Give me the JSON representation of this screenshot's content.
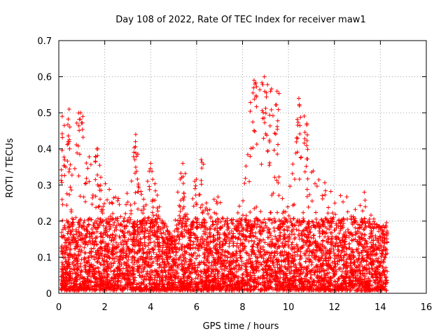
{
  "chart_data": {
    "type": "scatter",
    "title": "Day 108 of 2022, Rate Of TEC Index for receiver maw1",
    "xlabel": "GPS time / hours",
    "ylabel": "ROTI / TECUs",
    "xlim": [
      0,
      16
    ],
    "ylim": [
      0,
      0.7
    ],
    "grid": true,
    "x_ticks": [
      0,
      2,
      4,
      6,
      8,
      10,
      12,
      14,
      16
    ],
    "y_ticks": [
      0,
      0.1,
      0.2,
      0.3,
      0.4,
      0.5,
      0.6,
      0.7
    ],
    "x_tick_labels": [
      "0",
      "2",
      "4",
      "6",
      "8",
      "10",
      "12",
      "14",
      "16"
    ],
    "y_tick_labels": [
      "0",
      "0.1",
      "0.2",
      "0.3",
      "0.4",
      "0.5",
      "0.6",
      "0.7"
    ],
    "marker": "+",
    "color": "#ff0000",
    "data_x_range": [
      0.1,
      14.3
    ],
    "series": [
      {
        "name": "maw1",
        "envelope_x": [
          0.1,
          0.3,
          0.5,
          0.9,
          1.2,
          1.7,
          2.0,
          2.5,
          3.0,
          3.3,
          3.7,
          4.0,
          4.5,
          5.0,
          5.3,
          5.7,
          6.0,
          6.5,
          7.0,
          7.5,
          8.0,
          8.4,
          8.8,
          9.0,
          9.3,
          9.7,
          10.0,
          10.4,
          10.8,
          11.2,
          11.6,
          12.0,
          12.5,
          13.0,
          13.3,
          13.7,
          14.0,
          14.3
        ],
        "envelope_y": [
          0.49,
          0.35,
          0.51,
          0.5,
          0.38,
          0.4,
          0.3,
          0.27,
          0.3,
          0.44,
          0.25,
          0.36,
          0.2,
          0.15,
          0.36,
          0.2,
          0.37,
          0.25,
          0.27,
          0.2,
          0.25,
          0.58,
          0.6,
          0.6,
          0.56,
          0.28,
          0.25,
          0.54,
          0.47,
          0.35,
          0.3,
          0.26,
          0.27,
          0.22,
          0.28,
          0.2,
          0.18,
          0.19
        ],
        "peaks": [
          {
            "x": 0.15,
            "y": 0.49
          },
          {
            "x": 0.45,
            "y": 0.51
          },
          {
            "x": 0.95,
            "y": 0.5
          },
          {
            "x": 1.7,
            "y": 0.4
          },
          {
            "x": 3.35,
            "y": 0.44
          },
          {
            "x": 4.0,
            "y": 0.36
          },
          {
            "x": 5.4,
            "y": 0.36
          },
          {
            "x": 6.2,
            "y": 0.37
          },
          {
            "x": 8.5,
            "y": 0.59
          },
          {
            "x": 8.95,
            "y": 0.6
          },
          {
            "x": 9.5,
            "y": 0.56
          },
          {
            "x": 10.45,
            "y": 0.54
          },
          {
            "x": 10.8,
            "y": 0.47
          },
          {
            "x": 13.3,
            "y": 0.28
          }
        ]
      }
    ]
  }
}
